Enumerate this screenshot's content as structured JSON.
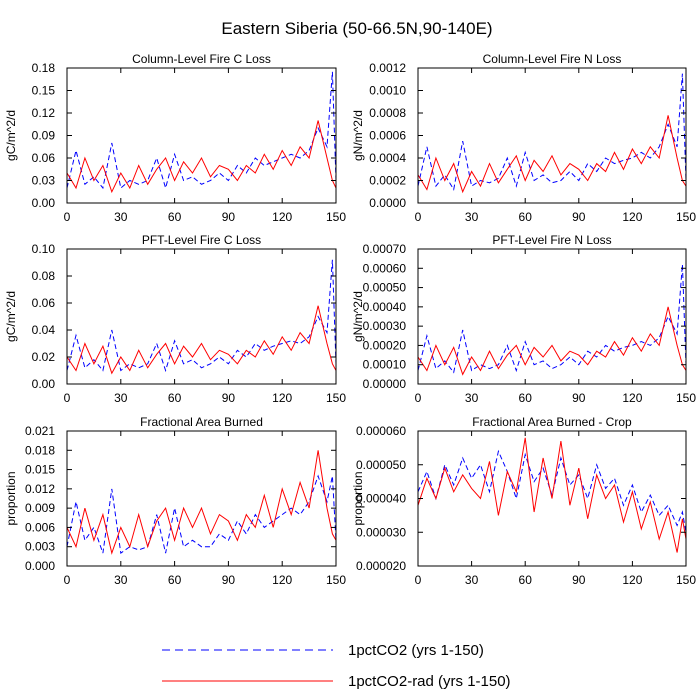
{
  "page_title": "Eastern Siberia (50-66.5N,90-140E)",
  "legend": {
    "items": [
      {
        "label": "1pctCO2 (yrs 1-150)",
        "color": "#0000ff",
        "dash": "dashed"
      },
      {
        "label": "1pctCO2-rad (yrs 1-150)",
        "color": "#ff0000",
        "dash": "solid"
      }
    ]
  },
  "chart_data": [
    {
      "type": "line",
      "title": "Column-Level Fire C Loss",
      "ylabel": "gC/m^2/d",
      "xlabel": "",
      "xlim": [
        0,
        150
      ],
      "ylim": [
        0,
        0.18
      ],
      "xticks": [
        "0",
        "30",
        "60",
        "90",
        "120",
        "150"
      ],
      "yticks": [
        "0.00",
        "0.03",
        "0.06",
        "0.09",
        "0.12",
        "0.15",
        "0.18"
      ],
      "grid": false,
      "series": [
        {
          "name": "1pctCO2 (yrs 1-150)",
          "color": "#0000ff",
          "dash": "dashed",
          "x": [
            0,
            5,
            10,
            15,
            20,
            25,
            30,
            35,
            40,
            45,
            50,
            55,
            60,
            65,
            70,
            75,
            80,
            85,
            90,
            95,
            100,
            105,
            110,
            115,
            120,
            125,
            130,
            135,
            140,
            145,
            148,
            150
          ],
          "y": [
            0.02,
            0.07,
            0.025,
            0.035,
            0.02,
            0.08,
            0.02,
            0.03,
            0.025,
            0.03,
            0.06,
            0.02,
            0.065,
            0.03,
            0.035,
            0.025,
            0.03,
            0.04,
            0.03,
            0.05,
            0.04,
            0.06,
            0.05,
            0.055,
            0.06,
            0.065,
            0.06,
            0.07,
            0.1,
            0.075,
            0.175,
            0.03
          ]
        },
        {
          "name": "1pctCO2-rad (yrs 1-150)",
          "color": "#ff0000",
          "dash": "solid",
          "x": [
            0,
            5,
            10,
            15,
            20,
            25,
            30,
            35,
            40,
            45,
            50,
            55,
            60,
            65,
            70,
            75,
            80,
            85,
            90,
            95,
            100,
            105,
            110,
            115,
            120,
            125,
            130,
            135,
            140,
            145,
            148,
            150
          ],
          "y": [
            0.04,
            0.02,
            0.06,
            0.03,
            0.05,
            0.015,
            0.04,
            0.02,
            0.05,
            0.025,
            0.045,
            0.06,
            0.03,
            0.055,
            0.04,
            0.06,
            0.035,
            0.05,
            0.045,
            0.03,
            0.05,
            0.04,
            0.065,
            0.045,
            0.07,
            0.05,
            0.075,
            0.06,
            0.11,
            0.06,
            0.03,
            0.02
          ]
        }
      ]
    },
    {
      "type": "line",
      "title": "Column-Level Fire N Loss",
      "ylabel": "gN/m^2/d",
      "xlabel": "",
      "xlim": [
        0,
        150
      ],
      "ylim": [
        0,
        0.0012
      ],
      "xticks": [
        "0",
        "30",
        "60",
        "90",
        "120",
        "150"
      ],
      "yticks": [
        "0.0000",
        "0.0002",
        "0.0004",
        "0.0006",
        "0.0008",
        "0.0010",
        "0.0012"
      ],
      "grid": false,
      "series": [
        {
          "name": "1pctCO2 (yrs 1-150)",
          "color": "#0000ff",
          "dash": "dashed",
          "x": [
            0,
            5,
            10,
            15,
            20,
            25,
            30,
            35,
            40,
            45,
            50,
            55,
            60,
            65,
            70,
            75,
            80,
            85,
            90,
            95,
            100,
            105,
            110,
            115,
            120,
            125,
            130,
            135,
            140,
            145,
            148,
            150
          ],
          "y": [
            0.00015,
            0.0005,
            0.00015,
            0.00025,
            0.00012,
            0.00055,
            0.00015,
            0.0002,
            0.00018,
            0.00022,
            0.0004,
            0.00015,
            0.00045,
            0.0002,
            0.00025,
            0.00018,
            0.0002,
            0.00028,
            0.0002,
            0.00035,
            0.00028,
            0.0004,
            0.00035,
            0.00038,
            0.0004,
            0.00045,
            0.0004,
            0.0005,
            0.0007,
            0.0005,
            0.00115,
            0.0002
          ]
        },
        {
          "name": "1pctCO2-rad (yrs 1-150)",
          "color": "#ff0000",
          "dash": "solid",
          "x": [
            0,
            5,
            10,
            15,
            20,
            25,
            30,
            35,
            40,
            45,
            50,
            55,
            60,
            65,
            70,
            75,
            80,
            85,
            90,
            95,
            100,
            105,
            110,
            115,
            120,
            125,
            130,
            135,
            140,
            145,
            148,
            150
          ],
          "y": [
            0.00025,
            0.00012,
            0.0004,
            0.0002,
            0.00035,
            0.0001,
            0.00028,
            0.00015,
            0.00035,
            0.00018,
            0.0003,
            0.00042,
            0.0002,
            0.00038,
            0.00028,
            0.00042,
            0.00025,
            0.00035,
            0.0003,
            0.0002,
            0.00035,
            0.00028,
            0.00045,
            0.0003,
            0.00048,
            0.00035,
            0.0005,
            0.0004,
            0.00078,
            0.0004,
            0.0002,
            0.00015
          ]
        }
      ]
    },
    {
      "type": "line",
      "title": "PFT-Level Fire C Loss",
      "ylabel": "gC/m^2/d",
      "xlabel": "",
      "xlim": [
        0,
        150
      ],
      "ylim": [
        0,
        0.1
      ],
      "xticks": [
        "0",
        "30",
        "60",
        "90",
        "120",
        "150"
      ],
      "yticks": [
        "0.00",
        "0.02",
        "0.04",
        "0.06",
        "0.08",
        "0.10"
      ],
      "grid": false,
      "series": [
        {
          "name": "1pctCO2 (yrs 1-150)",
          "color": "#0000ff",
          "dash": "dashed",
          "x": [
            0,
            5,
            10,
            15,
            20,
            25,
            30,
            35,
            40,
            45,
            50,
            55,
            60,
            65,
            70,
            75,
            80,
            85,
            90,
            95,
            100,
            105,
            110,
            115,
            120,
            125,
            130,
            135,
            140,
            145,
            148,
            150
          ],
          "y": [
            0.01,
            0.036,
            0.012,
            0.018,
            0.01,
            0.04,
            0.01,
            0.015,
            0.012,
            0.015,
            0.03,
            0.01,
            0.032,
            0.015,
            0.018,
            0.012,
            0.015,
            0.02,
            0.015,
            0.025,
            0.02,
            0.03,
            0.025,
            0.028,
            0.03,
            0.032,
            0.03,
            0.035,
            0.05,
            0.038,
            0.092,
            0.015
          ]
        },
        {
          "name": "1pctCO2-rad (yrs 1-150)",
          "color": "#ff0000",
          "dash": "solid",
          "x": [
            0,
            5,
            10,
            15,
            20,
            25,
            30,
            35,
            40,
            45,
            50,
            55,
            60,
            65,
            70,
            75,
            80,
            85,
            90,
            95,
            100,
            105,
            110,
            115,
            120,
            125,
            130,
            135,
            140,
            145,
            148,
            150
          ],
          "y": [
            0.02,
            0.01,
            0.03,
            0.015,
            0.028,
            0.008,
            0.02,
            0.01,
            0.025,
            0.012,
            0.022,
            0.03,
            0.015,
            0.028,
            0.02,
            0.03,
            0.018,
            0.025,
            0.022,
            0.015,
            0.025,
            0.02,
            0.032,
            0.022,
            0.035,
            0.025,
            0.038,
            0.03,
            0.058,
            0.03,
            0.015,
            0.01
          ]
        }
      ]
    },
    {
      "type": "line",
      "title": "PFT-Level Fire N Loss",
      "ylabel": "gN/m^2/d",
      "xlabel": "",
      "xlim": [
        0,
        150
      ],
      "ylim": [
        0,
        0.0007
      ],
      "xticks": [
        "0",
        "30",
        "60",
        "90",
        "120",
        "150"
      ],
      "yticks": [
        "0.00000",
        "0.00010",
        "0.00020",
        "0.00030",
        "0.00040",
        "0.00050",
        "0.00060",
        "0.00070"
      ],
      "grid": false,
      "series": [
        {
          "name": "1pctCO2 (yrs 1-150)",
          "color": "#0000ff",
          "dash": "dashed",
          "x": [
            0,
            5,
            10,
            15,
            20,
            25,
            30,
            35,
            40,
            45,
            50,
            55,
            60,
            65,
            70,
            75,
            80,
            85,
            90,
            95,
            100,
            105,
            110,
            115,
            120,
            125,
            130,
            135,
            140,
            145,
            148,
            150
          ],
          "y": [
            7e-05,
            0.00025,
            8e-05,
            0.00012,
            6e-05,
            0.00028,
            7e-05,
            0.0001,
            8e-05,
            0.0001,
            0.0002,
            7e-05,
            0.00022,
            0.0001,
            0.00012,
            8e-05,
            0.0001,
            0.00014,
            0.0001,
            0.00017,
            0.00014,
            0.0002,
            0.00017,
            0.00019,
            0.0002,
            0.00022,
            0.0002,
            0.00024,
            0.00035,
            0.00026,
            0.00062,
            0.0001
          ]
        },
        {
          "name": "1pctCO2-rad (yrs 1-150)",
          "color": "#ff0000",
          "dash": "solid",
          "x": [
            0,
            5,
            10,
            15,
            20,
            25,
            30,
            35,
            40,
            45,
            50,
            55,
            60,
            65,
            70,
            75,
            80,
            85,
            90,
            95,
            100,
            105,
            110,
            115,
            120,
            125,
            130,
            135,
            140,
            145,
            148,
            150
          ],
          "y": [
            0.00014,
            7e-05,
            0.0002,
            0.0001,
            0.00019,
            5e-05,
            0.00014,
            7e-05,
            0.00017,
            8e-05,
            0.00015,
            0.0002,
            0.0001,
            0.00019,
            0.00014,
            0.0002,
            0.00012,
            0.00017,
            0.00015,
            0.0001,
            0.00017,
            0.00014,
            0.00022,
            0.00015,
            0.00024,
            0.00017,
            0.00026,
            0.0002,
            0.0004,
            0.0002,
            0.0001,
            7e-05
          ]
        }
      ]
    },
    {
      "type": "line",
      "title": "Fractional Area Burned",
      "ylabel": "proportion",
      "xlabel": "",
      "xlim": [
        0,
        150
      ],
      "ylim": [
        0,
        0.021
      ],
      "xticks": [
        "0",
        "30",
        "60",
        "90",
        "120",
        "150"
      ],
      "yticks": [
        "0.000",
        "0.003",
        "0.006",
        "0.009",
        "0.012",
        "0.015",
        "0.018",
        "0.021"
      ],
      "grid": false,
      "series": [
        {
          "name": "1pctCO2 (yrs 1-150)",
          "color": "#0000ff",
          "dash": "dashed",
          "x": [
            0,
            5,
            10,
            15,
            20,
            25,
            30,
            35,
            40,
            45,
            50,
            55,
            60,
            65,
            70,
            75,
            80,
            85,
            90,
            95,
            100,
            105,
            110,
            115,
            120,
            125,
            130,
            135,
            140,
            145,
            148,
            150
          ],
          "y": [
            0.003,
            0.01,
            0.004,
            0.006,
            0.002,
            0.012,
            0.002,
            0.003,
            0.0025,
            0.003,
            0.008,
            0.002,
            0.009,
            0.003,
            0.004,
            0.003,
            0.003,
            0.005,
            0.004,
            0.007,
            0.005,
            0.008,
            0.006,
            0.007,
            0.008,
            0.009,
            0.008,
            0.01,
            0.014,
            0.01,
            0.014,
            0.004
          ]
        },
        {
          "name": "1pctCO2-rad (yrs 1-150)",
          "color": "#ff0000",
          "dash": "solid",
          "x": [
            0,
            5,
            10,
            15,
            20,
            25,
            30,
            35,
            40,
            45,
            50,
            55,
            60,
            65,
            70,
            75,
            80,
            85,
            90,
            95,
            100,
            105,
            110,
            115,
            120,
            125,
            130,
            135,
            140,
            145,
            148,
            150
          ],
          "y": [
            0.006,
            0.003,
            0.009,
            0.004,
            0.008,
            0.002,
            0.006,
            0.003,
            0.008,
            0.003,
            0.007,
            0.009,
            0.004,
            0.009,
            0.006,
            0.009,
            0.005,
            0.008,
            0.007,
            0.004,
            0.008,
            0.006,
            0.011,
            0.006,
            0.012,
            0.008,
            0.013,
            0.009,
            0.018,
            0.009,
            0.005,
            0.004
          ]
        }
      ]
    },
    {
      "type": "line",
      "title": "Fractional Area Burned - Crop",
      "ylabel": "proportion",
      "xlabel": "",
      "xlim": [
        0,
        150
      ],
      "ylim": [
        2e-05,
        6e-05
      ],
      "xticks": [
        "0",
        "30",
        "60",
        "90",
        "120",
        "150"
      ],
      "yticks": [
        "0.000020",
        "0.000030",
        "0.000040",
        "0.000050",
        "0.000060"
      ],
      "grid": false,
      "series": [
        {
          "name": "1pctCO2 (yrs 1-150)",
          "color": "#0000ff",
          "dash": "dashed",
          "x": [
            0,
            5,
            10,
            15,
            20,
            25,
            30,
            35,
            40,
            45,
            50,
            55,
            60,
            65,
            70,
            75,
            80,
            85,
            90,
            95,
            100,
            105,
            110,
            115,
            120,
            125,
            130,
            135,
            140,
            145,
            148,
            150
          ],
          "y": [
            4.2e-05,
            4.8e-05,
            4e-05,
            5e-05,
            4.4e-05,
            5.2e-05,
            4.6e-05,
            5e-05,
            4.2e-05,
            5.4e-05,
            4.8e-05,
            4e-05,
            5.3e-05,
            4.5e-05,
            4.9e-05,
            4.1e-05,
            5.2e-05,
            4.4e-05,
            4.7e-05,
            4e-05,
            5e-05,
            4.3e-05,
            4.6e-05,
            3.8e-05,
            4.4e-05,
            3.6e-05,
            4.1e-05,
            3.5e-05,
            3.8e-05,
            3.2e-05,
            3.6e-05,
            3e-05
          ]
        },
        {
          "name": "1pctCO2-rad (yrs 1-150)",
          "color": "#ff0000",
          "dash": "solid",
          "x": [
            0,
            5,
            10,
            15,
            20,
            25,
            30,
            35,
            40,
            45,
            50,
            55,
            60,
            65,
            70,
            75,
            80,
            85,
            90,
            95,
            100,
            105,
            110,
            115,
            120,
            125,
            130,
            135,
            140,
            145,
            148,
            150
          ],
          "y": [
            3.8e-05,
            4.6e-05,
            4e-05,
            4.9e-05,
            4.2e-05,
            4.7e-05,
            4.3e-05,
            4e-05,
            5.1e-05,
            3.5e-05,
            4.8e-05,
            4.2e-05,
            5.8e-05,
            3.6e-05,
            5.2e-05,
            4e-05,
            5.7e-05,
            3.8e-05,
            4.9e-05,
            3.4e-05,
            4.7e-05,
            4e-05,
            4.4e-05,
            3.3e-05,
            4.2e-05,
            3.1e-05,
            3.9e-05,
            2.8e-05,
            3.6e-05,
            2.4e-05,
            3.4e-05,
            2.8e-05
          ]
        }
      ]
    }
  ]
}
